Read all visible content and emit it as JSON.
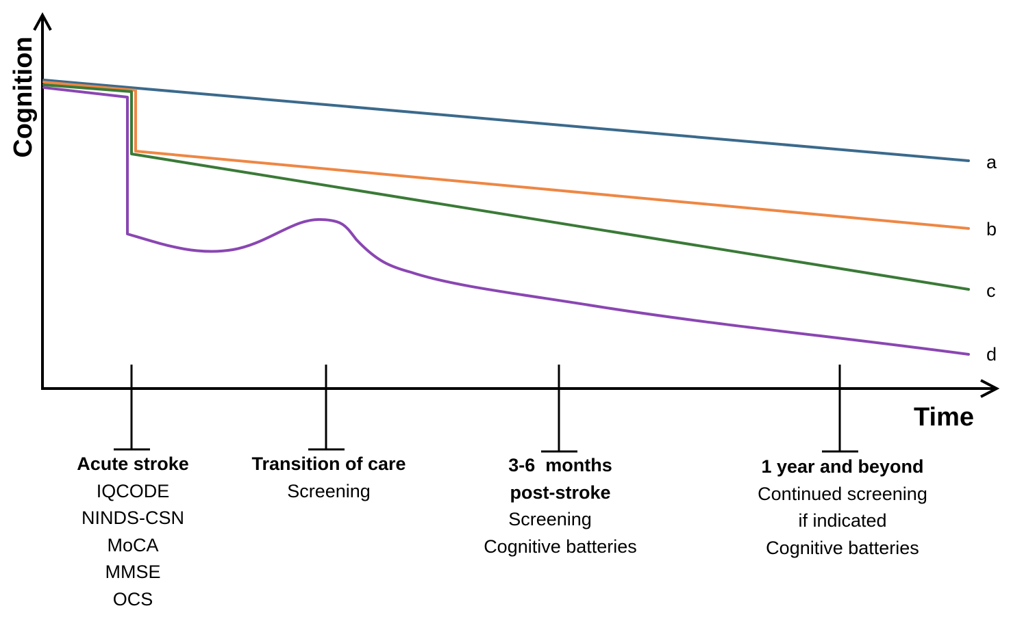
{
  "axes": {
    "y_title": "Cognition",
    "x_title": "Time"
  },
  "colors": {
    "axis": "#000000",
    "curve_a": "#3b6a8c",
    "curve_b": "#ee8744",
    "curve_c": "#3a7a37",
    "curve_d": "#8a46b2"
  },
  "curves": [
    {
      "id": "a",
      "label": "a"
    },
    {
      "id": "b",
      "label": "b"
    },
    {
      "id": "c",
      "label": "c"
    },
    {
      "id": "d",
      "label": "d"
    }
  ],
  "stages": [
    {
      "id": "acute",
      "title": [
        "Acute stroke"
      ],
      "lines": [
        "IQCODE",
        "NINDS-CSN",
        "MoCA",
        "MMSE",
        "OCS"
      ]
    },
    {
      "id": "transition",
      "title": [
        "Transition of care"
      ],
      "lines": [
        "Screening"
      ]
    },
    {
      "id": "three-six-months",
      "title": [
        "3-6  months",
        "post-stroke"
      ],
      "lines": [
        "Screening",
        "Cognitive batteries"
      ]
    },
    {
      "id": "one-year",
      "title": [
        "1 year and beyond"
      ],
      "lines": [
        "Continued screening",
        "if indicated",
        "Cognitive batteries"
      ]
    }
  ]
}
